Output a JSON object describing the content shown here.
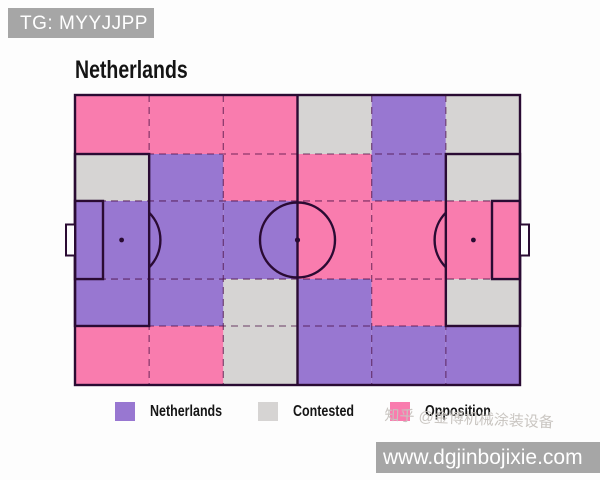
{
  "badge": {
    "text": "TG: MYYJJPP"
  },
  "title": "Netherlands",
  "chart_data": {
    "type": "heatmap",
    "title": "Netherlands",
    "description": "Football pitch zone-control map, 6 columns x 5 rows; each zone colored by controlling side",
    "grid_columns": 6,
    "grid_rows": 5,
    "legend": [
      {
        "key": "netherlands",
        "label": "Netherlands",
        "color": "#9877D1"
      },
      {
        "key": "contested",
        "label": "Contested",
        "color": "#D6D4D3"
      },
      {
        "key": "opposition",
        "label": "Opposition",
        "color": "#F97CAE"
      }
    ],
    "grid": [
      [
        "opposition",
        "opposition",
        "opposition",
        "contested",
        "netherlands",
        "contested"
      ],
      [
        "contested",
        "netherlands",
        "opposition",
        "opposition",
        "netherlands",
        "contested"
      ],
      [
        "netherlands",
        "netherlands",
        "netherlands",
        "opposition",
        "opposition",
        "opposition"
      ],
      [
        "netherlands",
        "netherlands",
        "contested",
        "netherlands",
        "opposition",
        "contested"
      ],
      [
        "opposition",
        "opposition",
        "contested",
        "netherlands",
        "netherlands",
        "netherlands"
      ]
    ],
    "legend_position": "bottom",
    "grid_lines": "dashed"
  },
  "pitch": {
    "line_color": "#2A0B33",
    "dash_color": "rgba(70,8,64,0.6)",
    "background": "#FDFDFD"
  },
  "watermarks": {
    "zhihu": "知乎 @金博机械涂装设备",
    "site_banner": "www.dgjinbojixie.com"
  }
}
